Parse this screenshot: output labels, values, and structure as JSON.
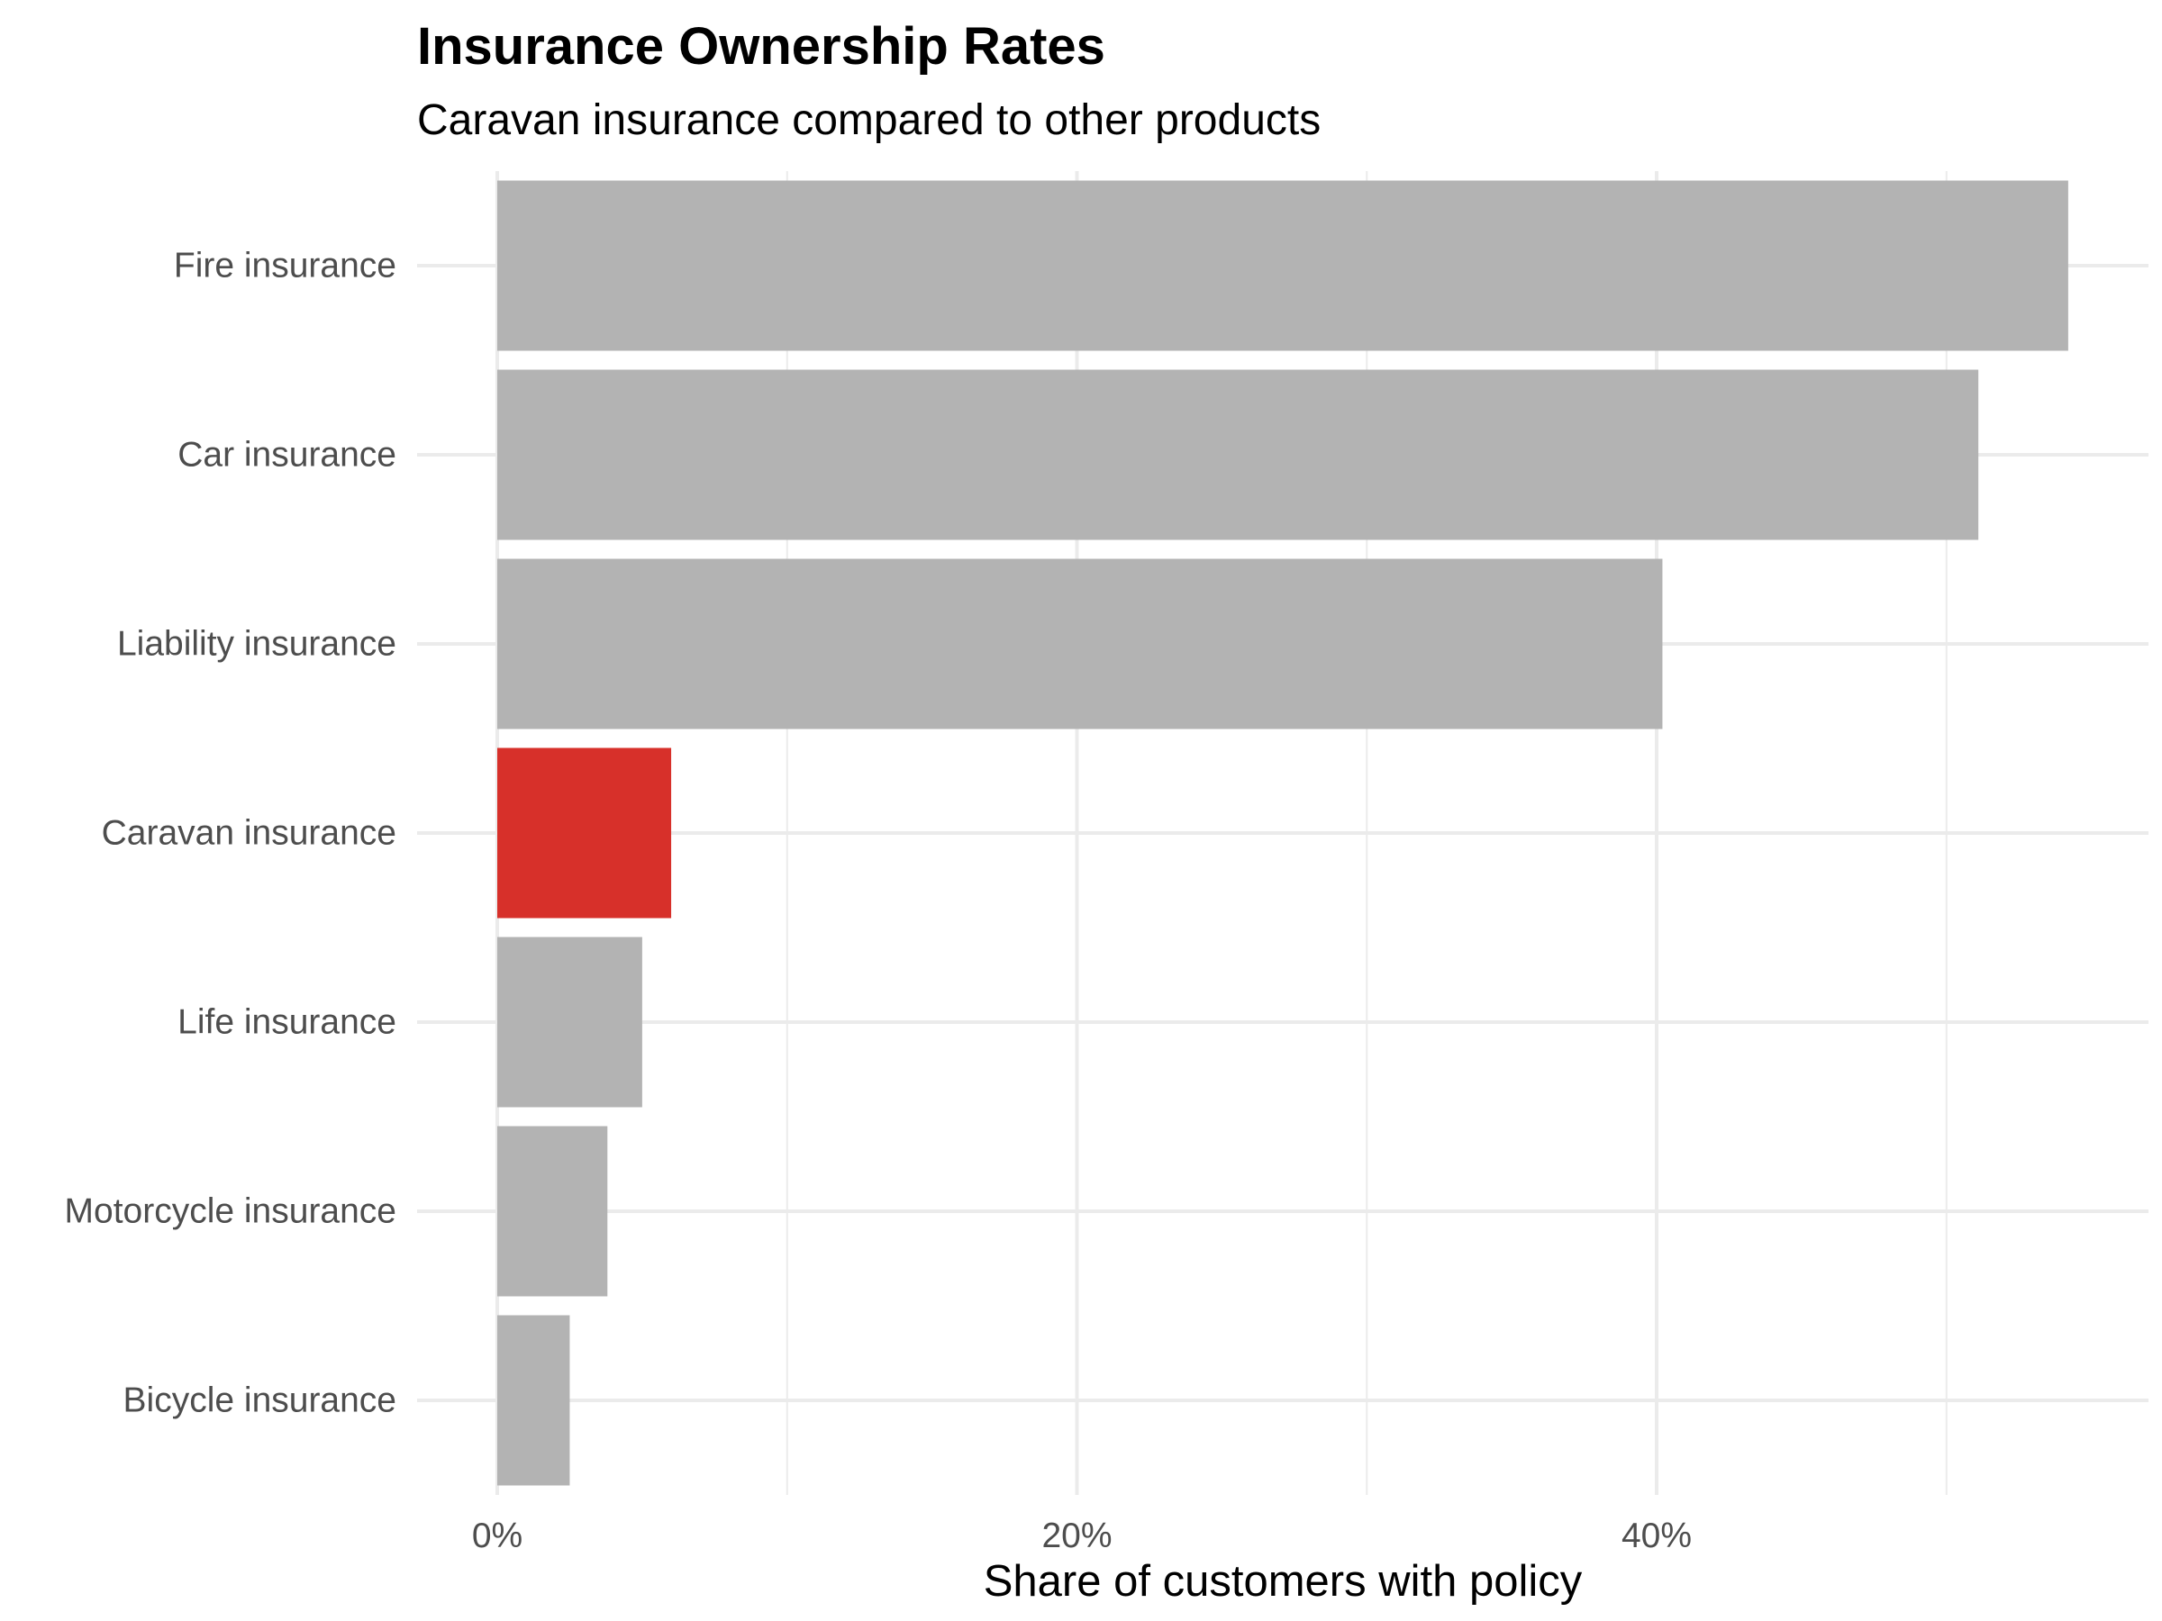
{
  "chart_data": {
    "type": "bar",
    "orientation": "horizontal",
    "title": "Insurance Ownership Rates",
    "subtitle": "Caravan insurance compared to other products",
    "xlabel": "Share of customers with policy",
    "ylabel": "",
    "xlim": [
      0,
      56
    ],
    "x_ticks": [
      {
        "value": 0,
        "label": "0%"
      },
      {
        "value": 20,
        "label": "20%"
      },
      {
        "value": 40,
        "label": "40%"
      }
    ],
    "x_minor_gridlines": [
      10,
      30,
      50
    ],
    "grid": true,
    "legend": "none",
    "categories": [
      "Fire insurance",
      "Car insurance",
      "Liability insurance",
      "Caravan insurance",
      "Life insurance",
      "Motorcycle insurance",
      "Bicycle insurance"
    ],
    "values": [
      54.2,
      51.1,
      40.2,
      6.0,
      5.0,
      3.8,
      2.5
    ],
    "highlight": "Caravan insurance",
    "colors": {
      "default_bar": "#b3b3b3",
      "highlight_bar": "#d7302a",
      "grid": "#ebebeb"
    }
  }
}
